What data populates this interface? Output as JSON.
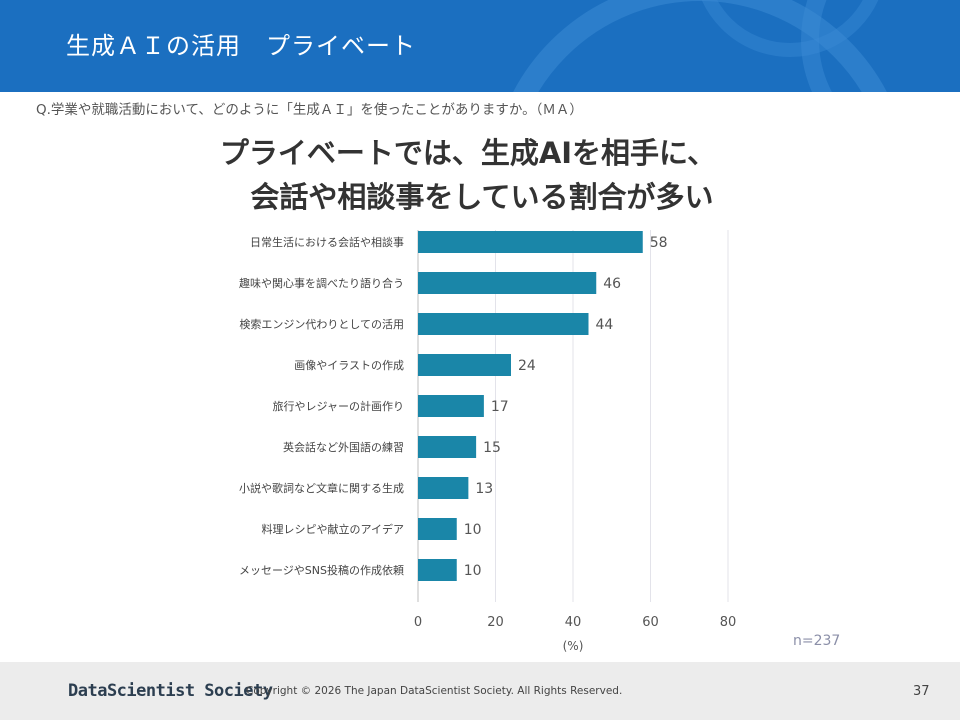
{
  "slide": {
    "title": "生成ＡＩの活用　プライベート",
    "question": "Q.学業や就職活動において、どのように「生成ＡＩ」を使ったことがありますか。（ＭＡ）",
    "headline_line1": "プライベートでは、生成AIを相手に、",
    "headline_line2": "会話や相談事をしている割合が多い",
    "sample_size": "n=237"
  },
  "footer": {
    "brand": "DataScientist Society",
    "copyright": "Copyright © 2026  The Japan DataScientist Society. All Rights Reserved.",
    "page_number": "37"
  },
  "colors": {
    "header": "#1b6fc0",
    "bar": "#1a86a8",
    "footer_bg": "#ececec"
  },
  "chart_data": {
    "type": "bar",
    "orientation": "horizontal",
    "categories": [
      "日常生活における会話や相談事",
      "趣味や関心事を調べたり語り合う",
      "検索エンジン代わりとしての活用",
      "画像やイラストの作成",
      "旅行やレジャーの計画作り",
      "英会話など外国語の練習",
      "小説や歌詞など文章に関する生成",
      "料理レシピや献立のアイデア",
      "メッセージやSNS投稿の作成依頼"
    ],
    "values": [
      58,
      46,
      44,
      24,
      17,
      15,
      13,
      10,
      10
    ],
    "xlim": [
      0,
      80
    ],
    "xticks": [
      0,
      20,
      40,
      60,
      80
    ],
    "xlabel": "(%)",
    "grid": true,
    "data_labels": true
  }
}
